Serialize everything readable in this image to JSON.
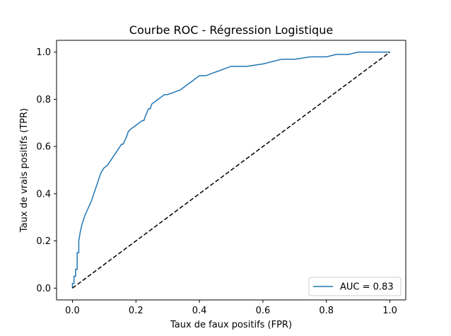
{
  "chart_data": {
    "type": "line",
    "title": "Courbe ROC - Régression Logistique",
    "xlabel": "Taux de faux positifs (FPR)",
    "ylabel": "Taux de vrais positifs (TPR)",
    "xlim": [
      -0.05,
      1.05
    ],
    "ylim": [
      -0.05,
      1.05
    ],
    "x_ticks": [
      "0.0",
      "0.2",
      "0.4",
      "0.6",
      "0.8",
      "1.0"
    ],
    "y_ticks": [
      "0.0",
      "0.2",
      "0.4",
      "0.6",
      "0.8",
      "1.0"
    ],
    "grid": false,
    "legend_position": "lower right",
    "series": [
      {
        "name": "AUC = 0.83",
        "color": "#1f77b4",
        "style": "solid",
        "x": [
          0.0,
          0.0,
          0.005,
          0.005,
          0.01,
          0.01,
          0.015,
          0.015,
          0.02,
          0.02,
          0.025,
          0.03,
          0.04,
          0.05,
          0.06,
          0.07,
          0.08,
          0.09,
          0.1,
          0.11,
          0.12,
          0.13,
          0.135,
          0.14,
          0.15,
          0.155,
          0.16,
          0.17,
          0.175,
          0.18,
          0.19,
          0.2,
          0.21,
          0.22,
          0.225,
          0.23,
          0.24,
          0.245,
          0.25,
          0.26,
          0.27,
          0.28,
          0.29,
          0.3,
          0.32,
          0.34,
          0.35,
          0.36,
          0.38,
          0.39,
          0.4,
          0.42,
          0.44,
          0.46,
          0.48,
          0.5,
          0.52,
          0.55,
          0.6,
          0.63,
          0.66,
          0.7,
          0.75,
          0.8,
          0.83,
          0.87,
          0.9,
          0.95,
          1.0
        ],
        "y": [
          0.0,
          0.02,
          0.02,
          0.05,
          0.05,
          0.08,
          0.08,
          0.15,
          0.15,
          0.2,
          0.24,
          0.27,
          0.31,
          0.34,
          0.37,
          0.41,
          0.45,
          0.49,
          0.51,
          0.52,
          0.54,
          0.56,
          0.57,
          0.58,
          0.6,
          0.61,
          0.61,
          0.64,
          0.66,
          0.67,
          0.68,
          0.69,
          0.7,
          0.71,
          0.71,
          0.73,
          0.76,
          0.76,
          0.78,
          0.79,
          0.8,
          0.81,
          0.82,
          0.82,
          0.83,
          0.84,
          0.85,
          0.86,
          0.88,
          0.89,
          0.9,
          0.9,
          0.91,
          0.92,
          0.93,
          0.94,
          0.94,
          0.94,
          0.95,
          0.96,
          0.97,
          0.97,
          0.98,
          0.98,
          0.99,
          0.99,
          1.0,
          1.0,
          1.0
        ]
      },
      {
        "name": "",
        "color": "#000000",
        "style": "dashed",
        "x": [
          0.0,
          1.0
        ],
        "y": [
          0.0,
          1.0
        ]
      }
    ]
  }
}
